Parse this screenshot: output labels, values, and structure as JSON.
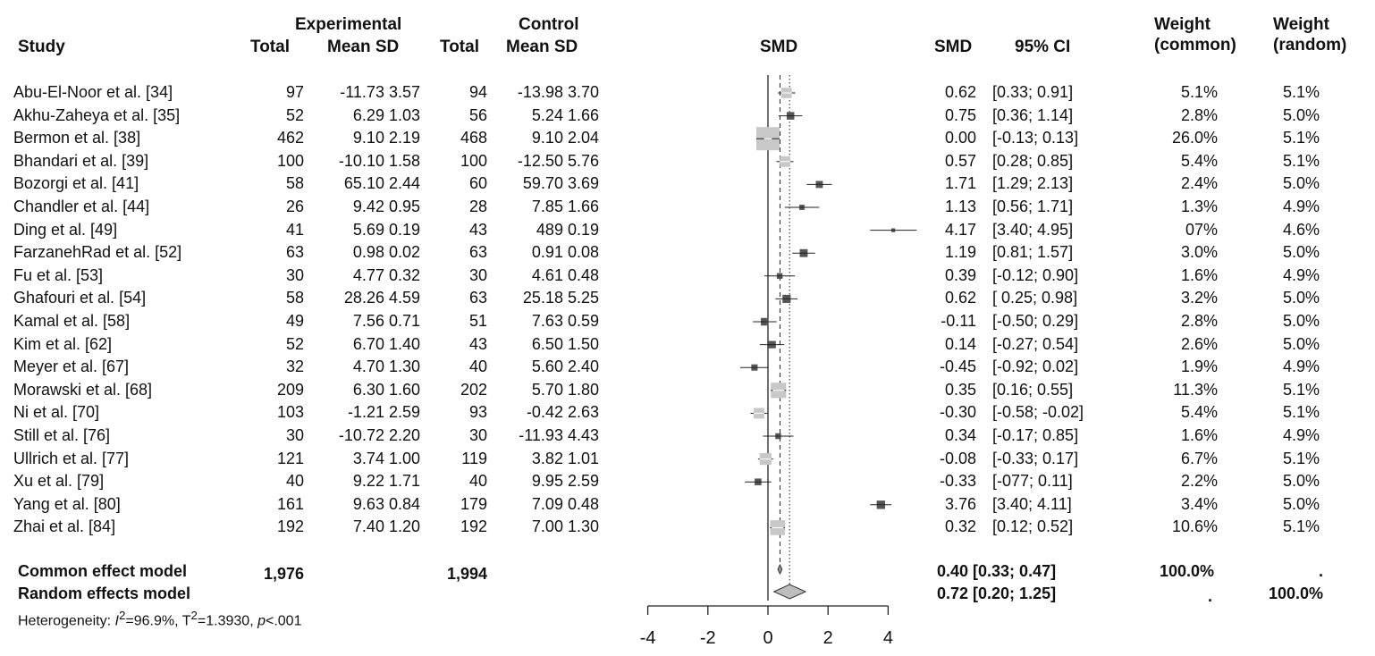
{
  "chart_data": {
    "type": "forest",
    "headers": {
      "study": "Study",
      "experimental_group": "Experimental",
      "control_group": "Control",
      "total": "Total",
      "mean_sd": "Mean SD",
      "plot_label": "SMD",
      "smd": "SMD",
      "ci": "95% CI",
      "weight_common_1": "Weight",
      "weight_common_2": "(common)",
      "weight_random_1": "Weight",
      "weight_random_2": "(random)"
    },
    "studies": [
      {
        "study": "Abu-El-Noor et al. [34]",
        "e_total": "97",
        "e_mean_sd": "-11.73 3.57",
        "c_total": "94",
        "c_mean_sd": "-13.98 3.70",
        "smd": "0.62",
        "ci": "[0.33; 0.91]",
        "w_common": "5.1%",
        "w_random": "5.1%",
        "est": 0.62,
        "lo": 0.33,
        "hi": 0.91,
        "weight": 5.1
      },
      {
        "study": "Akhu-Zaheya et al. [35]",
        "e_total": "52",
        "e_mean_sd": "6.29 1.03",
        "c_total": "56",
        "c_mean_sd": "5.24 1.66",
        "smd": "0.75",
        "ci": "[0.36; 1.14]",
        "w_common": "2.8%",
        "w_random": "5.0%",
        "est": 0.75,
        "lo": 0.36,
        "hi": 1.14,
        "weight": 2.8
      },
      {
        "study": "Bermon et al. [38]",
        "e_total": "462",
        "e_mean_sd": "9.10 2.19",
        "c_total": "468",
        "c_mean_sd": "9.10 2.04",
        "smd": "0.00",
        "ci": "[-0.13; 0.13]",
        "w_common": "26.0%",
        "w_random": "5.1%",
        "est": 0.0,
        "lo": -0.13,
        "hi": 0.13,
        "weight": 26.0
      },
      {
        "study": "Bhandari et al. [39]",
        "e_total": "100",
        "e_mean_sd": "-10.10 1.58",
        "c_total": "100",
        "c_mean_sd": "-12.50 5.76",
        "smd": "0.57",
        "ci": "[0.28; 0.85]",
        "w_common": "5.4%",
        "w_random": "5.1%",
        "est": 0.57,
        "lo": 0.28,
        "hi": 0.85,
        "weight": 5.4
      },
      {
        "study": "Bozorgi et al. [41]",
        "e_total": "58",
        "e_mean_sd": "65.10 2.44",
        "c_total": "60",
        "c_mean_sd": "59.70 3.69",
        "smd": "1.71",
        "ci": "[1.29; 2.13]",
        "w_common": "2.4%",
        "w_random": "5.0%",
        "est": 1.71,
        "lo": 1.29,
        "hi": 2.13,
        "weight": 2.4
      },
      {
        "study": "Chandler et al. [44]",
        "e_total": "26",
        "e_mean_sd": "9.42 0.95",
        "c_total": "28",
        "c_mean_sd": "7.85 1.66",
        "smd": "1.13",
        "ci": "[0.56; 1.71]",
        "w_common": "1.3%",
        "w_random": "4.9%",
        "est": 1.13,
        "lo": 0.56,
        "hi": 1.71,
        "weight": 1.3
      },
      {
        "study": "Ding et al. [49]",
        "e_total": "41",
        "e_mean_sd": "5.69 0.19",
        "c_total": "43",
        "c_mean_sd": "489 0.19",
        "smd": "4.17",
        "ci": "[3.40; 4.95]",
        "w_common": "07%",
        "w_random": "4.6%",
        "est": 4.17,
        "lo": 3.4,
        "hi": 4.95,
        "weight": 0.7
      },
      {
        "study": "FarzanehRad et al. [52]",
        "e_total": "63",
        "e_mean_sd": "0.98 0.02",
        "c_total": "63",
        "c_mean_sd": "0.91 0.08",
        "smd": "1.19",
        "ci": "[0.81; 1.57]",
        "w_common": "3.0%",
        "w_random": "5.0%",
        "est": 1.19,
        "lo": 0.81,
        "hi": 1.57,
        "weight": 3.0
      },
      {
        "study": "Fu et al. [53]",
        "e_total": "30",
        "e_mean_sd": "4.77 0.32",
        "c_total": "30",
        "c_mean_sd": "4.61 0.48",
        "smd": "0.39",
        "ci": "[-0.12; 0.90]",
        "w_common": "1.6%",
        "w_random": "4.9%",
        "est": 0.39,
        "lo": -0.12,
        "hi": 0.9,
        "weight": 1.6
      },
      {
        "study": "Ghafouri et al. [54]",
        "e_total": "58",
        "e_mean_sd": "28.26 4.59",
        "c_total": "63",
        "c_mean_sd": "25.18 5.25",
        "smd": "0.62",
        "ci": "[ 0.25; 0.98]",
        "w_common": "3.2%",
        "w_random": "5.0%",
        "est": 0.62,
        "lo": 0.25,
        "hi": 0.98,
        "weight": 3.2
      },
      {
        "study": "Kamal et al. [58]",
        "e_total": "49",
        "e_mean_sd": "7.56 0.71",
        "c_total": "51",
        "c_mean_sd": "7.63 0.59",
        "smd": "-0.11",
        "ci": "[-0.50; 0.29]",
        "w_common": "2.8%",
        "w_random": "5.0%",
        "est": -0.11,
        "lo": -0.5,
        "hi": 0.29,
        "weight": 2.8
      },
      {
        "study": "Kim et al. [62]",
        "e_total": "52",
        "e_mean_sd": "6.70 1.40",
        "c_total": "43",
        "c_mean_sd": "6.50 1.50",
        "smd": "0.14",
        "ci": "[-0.27; 0.54]",
        "w_common": "2.6%",
        "w_random": "5.0%",
        "est": 0.14,
        "lo": -0.27,
        "hi": 0.54,
        "weight": 2.6
      },
      {
        "study": "Meyer et al. [67]",
        "e_total": "32",
        "e_mean_sd": "4.70 1.30",
        "c_total": "40",
        "c_mean_sd": "5.60 2.40",
        "smd": "-0.45",
        "ci": "[-0.92; 0.02]",
        "w_common": "1.9%",
        "w_random": "4.9%",
        "est": -0.45,
        "lo": -0.92,
        "hi": 0.02,
        "weight": 1.9
      },
      {
        "study": "Morawski et al. [68]",
        "e_total": "209",
        "e_mean_sd": "6.30 1.60",
        "c_total": "202",
        "c_mean_sd": "5.70 1.80",
        "smd": "0.35",
        "ci": "[0.16; 0.55]",
        "w_common": "11.3%",
        "w_random": "5.1%",
        "est": 0.35,
        "lo": 0.16,
        "hi": 0.55,
        "weight": 11.3
      },
      {
        "study": "Ni et al. [70]",
        "e_total": "103",
        "e_mean_sd": "-1.21 2.59",
        "c_total": "93",
        "c_mean_sd": "-0.42 2.63",
        "smd": "-0.30",
        "ci": "[-0.58; -0.02]",
        "w_common": "5.4%",
        "w_random": "5.1%",
        "est": -0.3,
        "lo": -0.58,
        "hi": -0.02,
        "weight": 5.4
      },
      {
        "study": "Still et al. [76]",
        "e_total": "30",
        "e_mean_sd": "-10.72 2.20",
        "c_total": "30",
        "c_mean_sd": "-11.93 4.43",
        "smd": "0.34",
        "ci": "[-0.17; 0.85]",
        "w_common": "1.6%",
        "w_random": "4.9%",
        "est": 0.34,
        "lo": -0.17,
        "hi": 0.85,
        "weight": 1.6
      },
      {
        "study": "Ullrich et al. [77]",
        "e_total": "121",
        "e_mean_sd": "3.74 1.00",
        "c_total": "119",
        "c_mean_sd": "3.82 1.01",
        "smd": "-0.08",
        "ci": "[-0.33; 0.17]",
        "w_common": "6.7%",
        "w_random": "5.1%",
        "est": -0.08,
        "lo": -0.33,
        "hi": 0.17,
        "weight": 6.7
      },
      {
        "study": "Xu et al. [79]",
        "e_total": "40",
        "e_mean_sd": "9.22 1.71",
        "c_total": "40",
        "c_mean_sd": "9.95 2.59",
        "smd": "-0.33",
        "ci": "[-077; 0.11]",
        "w_common": "2.2%",
        "w_random": "5.0%",
        "est": -0.33,
        "lo": -0.77,
        "hi": 0.11,
        "weight": 2.2
      },
      {
        "study": "Yang et al. [80]",
        "e_total": "161",
        "e_mean_sd": "9.63 0.84",
        "c_total": "179",
        "c_mean_sd": "7.09 0.48",
        "smd": "3.76",
        "ci": "[3.40; 4.11]",
        "w_common": "3.4%",
        "w_random": "5.0%",
        "est": 3.76,
        "lo": 3.4,
        "hi": 4.11,
        "weight": 3.4
      },
      {
        "study": "Zhai et al. [84]",
        "e_total": "192",
        "e_mean_sd": "7.40 1.20",
        "c_total": "192",
        "c_mean_sd": "7.00 1.30",
        "smd": "0.32",
        "ci": "[0.12; 0.52]",
        "w_common": "10.6%",
        "w_random": "5.1%",
        "est": 0.32,
        "lo": 0.12,
        "hi": 0.52,
        "weight": 10.6
      }
    ],
    "summaries": [
      {
        "label": "Common effect model",
        "e_total": "1,976",
        "c_total": "1,994",
        "smd_ci": "0.40 [0.33; 0.47]",
        "w_common": "100.0%",
        "w_random": ".",
        "est": 0.4,
        "lo": 0.33,
        "hi": 0.47
      },
      {
        "label": "Random effects model",
        "e_total": "",
        "c_total": "",
        "smd_ci": "0.72 [0.20; 1.25]",
        "w_common": ".",
        "w_random": "100.0%",
        "est": 0.72,
        "lo": 0.2,
        "hi": 1.25
      }
    ],
    "heterogeneity": {
      "prefix": "Heterogeneity: ",
      "i2_symbol": "I",
      "i2_sup": "2",
      "i2_value": "=96.9%, ",
      "tau_symbol": "T",
      "tau_sup": "2",
      "tau_value": "=1.3930, ",
      "p_symbol": "p",
      "p_value": "<.001"
    },
    "xaxis": {
      "ticks": [
        -4,
        -2,
        0,
        2,
        4
      ],
      "tick_labels": [
        "-4",
        "-2",
        "0",
        "2",
        "4"
      ],
      "range": [
        -4,
        4
      ]
    },
    "colors": {
      "small_square": "#555555",
      "large_square": "#c8c8c8",
      "diamond": "#bdbdbd"
    }
  }
}
